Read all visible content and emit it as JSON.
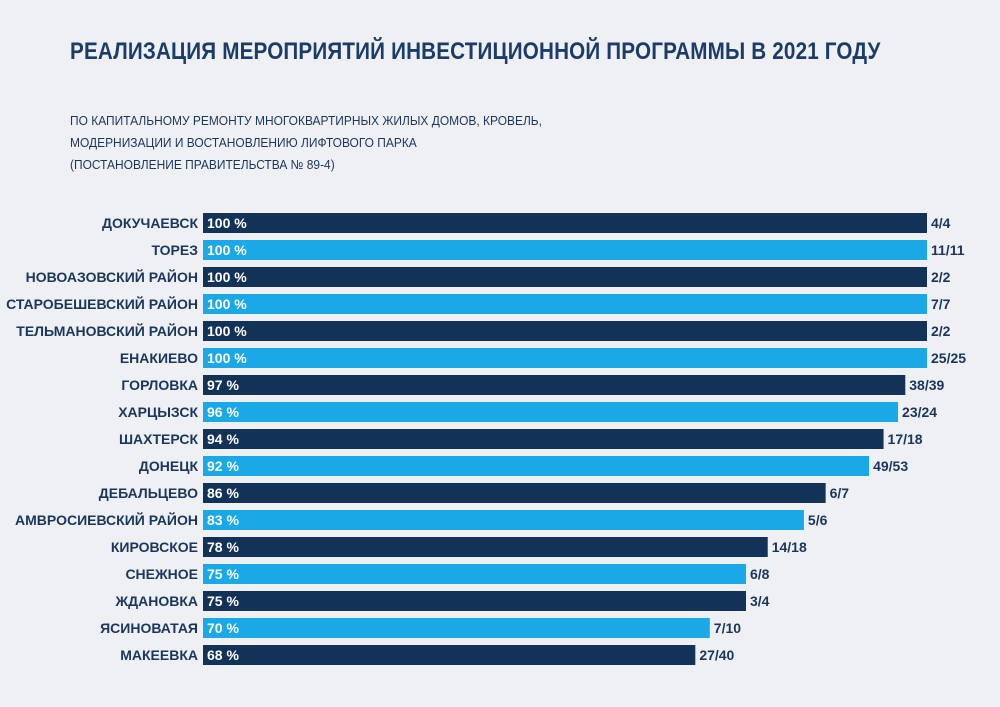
{
  "title": "РЕАЛИЗАЦИЯ МЕРОПРИЯТИЙ ИНВЕСТИЦИОННОЙ ПРОГРАММЫ В 2021 ГОДУ",
  "subtitle_lines": [
    "ПО КАПИТАЛЬНОМУ РЕМОНТУ МНОГОКВАРТИРНЫХ ЖИЛЫХ ДОМОВ, КРОВЕЛЬ,",
    "МОДЕРНИЗАЦИИ И ВОСТАНОВЛЕНИЮ ЛИФТОВОГО ПАРКА",
    "(ПОСТАНОВЛЕНИЕ ПРАВИТЕЛЬСТВА  № 89-4)"
  ],
  "colors": {
    "dark_bar": "#133257",
    "light_bar": "#1aa9e6",
    "text": "#1b365d",
    "background": "#eef0f3"
  },
  "chart_data": {
    "type": "bar",
    "orientation": "horizontal",
    "xlim": [
      0,
      100
    ],
    "unit": "%",
    "categories": [
      "ДОКУЧАЕВСК",
      "ТОРЕЗ",
      "НОВОАЗОВСКИЙ РАЙОН",
      "СТАРОБЕШЕВСКИЙ РАЙОН",
      "ТЕЛЬМАНОВСКИЙ РАЙОН",
      "ЕНАКИЕВО",
      "ГОРЛОВКА",
      "ХАРЦЫЗСК",
      "ШАХТЕРСК",
      "ДОНЕЦК",
      "ДЕБАЛЬЦЕВО",
      "АМВРОСИЕВСКИЙ РАЙОН",
      "КИРОВСКОЕ",
      "СНЕЖНОЕ",
      "ЖДАНОВКА",
      "ЯСИНОВАТАЯ",
      "МАКЕЕВКА"
    ],
    "values": [
      100,
      100,
      100,
      100,
      100,
      100,
      97,
      96,
      94,
      92,
      86,
      83,
      78,
      75,
      75,
      70,
      68
    ],
    "value_labels": [
      "100 %",
      "100 %",
      "100 %",
      "100 %",
      "100 %",
      "100 %",
      "97 %",
      "96 %",
      "94 %",
      "92 %",
      "86 %",
      "83 %",
      "78 %",
      "75 %",
      "75 %",
      "70 %",
      "68 %"
    ],
    "count_labels": [
      "4/4",
      "11/11",
      "2/2",
      "7/7",
      "2/2",
      "25/25",
      "38/39",
      "23/24",
      "17/18",
      "49/53",
      "6/7",
      "5/6",
      "14/18",
      "6/8",
      "3/4",
      "7/10",
      "27/40"
    ]
  }
}
